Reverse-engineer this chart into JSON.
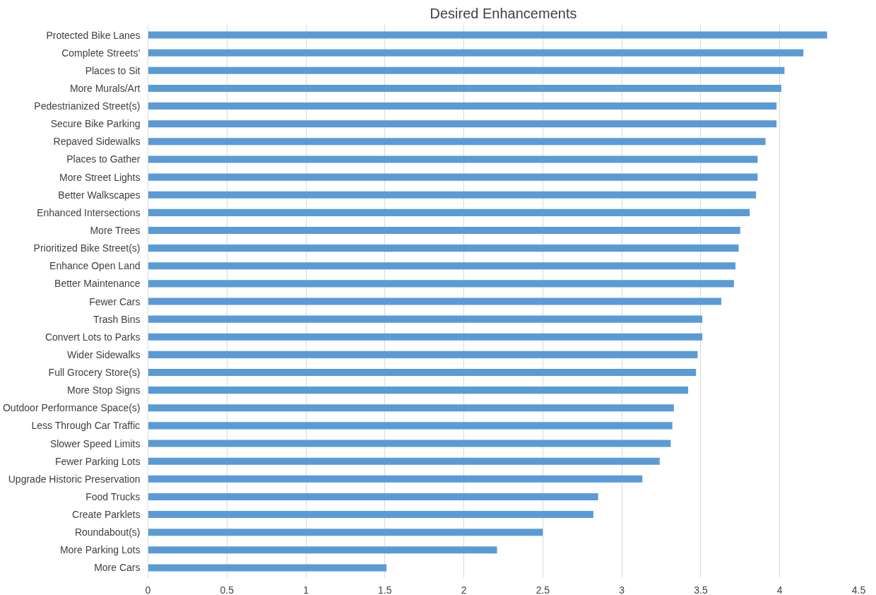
{
  "chart_data": {
    "type": "bar",
    "orientation": "horizontal",
    "title": "Desired Enhancements",
    "categories": [
      "Protected Bike Lanes",
      "Complete Streets’",
      "Places to Sit",
      "More Murals/Art",
      "Pedestrianized Street(s)",
      "Secure Bike Parking",
      "Repaved Sidewalks",
      "Places to Gather",
      "More Street Lights",
      "Better Walkscapes",
      "Enhanced Intersections",
      "More Trees",
      "Prioritized Bike Street(s)",
      "Enhance Open Land",
      "Better Maintenance",
      "Fewer Cars",
      "Trash Bins",
      "Convert Lots to Parks",
      "Wider Sidewalks",
      "Full Grocery Store(s)",
      "More Stop Signs",
      "Outdoor Performance Space(s)",
      "Less Through Car Traffic",
      "Slower Speed Limits",
      "Fewer Parking Lots",
      "Upgrade Historic Preservation",
      "Food Trucks",
      "Create Parklets",
      "Roundabout(s)",
      "More Parking Lots",
      "More Cars"
    ],
    "values": [
      4.3,
      4.15,
      4.03,
      4.01,
      3.98,
      3.98,
      3.91,
      3.86,
      3.86,
      3.85,
      3.81,
      3.75,
      3.74,
      3.72,
      3.71,
      3.63,
      3.51,
      3.51,
      3.48,
      3.47,
      3.42,
      3.33,
      3.32,
      3.31,
      3.24,
      3.13,
      2.85,
      2.82,
      2.5,
      2.21,
      1.51
    ],
    "color": "#5b9bd5",
    "xlim": [
      0,
      4.5
    ],
    "xticks": [
      0,
      0.5,
      1,
      1.5,
      2,
      2.5,
      3,
      3.5,
      4,
      4.5
    ],
    "grid": "x"
  }
}
